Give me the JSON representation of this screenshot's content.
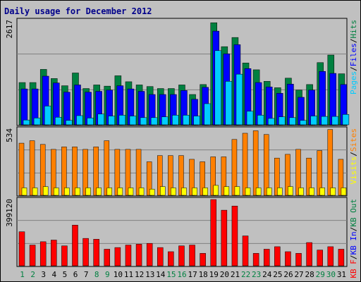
{
  "chart_data": {
    "title": "Daily usage for December 2012",
    "categories": [
      "1",
      "2",
      "3",
      "4",
      "5",
      "6",
      "7",
      "8",
      "9",
      "10",
      "11",
      "12",
      "13",
      "14",
      "15",
      "16",
      "17",
      "18",
      "19",
      "20",
      "21",
      "22",
      "23",
      "24",
      "25",
      "26",
      "27",
      "28",
      "29",
      "30",
      "31"
    ],
    "weekend_days": [
      "1",
      "2",
      "8",
      "9",
      "15",
      "16",
      "22",
      "23",
      "29",
      "30"
    ],
    "panels": [
      {
        "type": "bar",
        "max_label": "2617",
        "ymax": 2617,
        "legend": [
          {
            "name": "Pages",
            "color": "#00ccff"
          },
          {
            "name": "Files",
            "color": "#0000ff"
          },
          {
            "name": "Hits",
            "color": "#008040"
          }
        ],
        "series": [
          {
            "name": "Hits",
            "color": "#008040",
            "values": [
              1060,
              1060,
              1390,
              1160,
              980,
              1300,
              910,
              1000,
              970,
              1230,
              1080,
              1000,
              960,
              910,
              910,
              1000,
              760,
              1010,
              2560,
              1960,
              2190,
              1550,
              1380,
              1090,
              930,
              1170,
              870,
              1010,
              1560,
              1750,
              1280
            ]
          },
          {
            "name": "Files",
            "color": "#0000ff",
            "values": [
              900,
              900,
              1220,
              1050,
              820,
              1000,
              820,
              840,
              870,
              980,
              900,
              840,
              760,
              760,
              760,
              860,
              640,
              940,
              2350,
              1780,
              2010,
              1410,
              1060,
              950,
              790,
              1020,
              690,
              870,
              1340,
              1290,
              1010
            ]
          },
          {
            "name": "Pages",
            "color": "#00ccff",
            "values": [
              120,
              170,
              470,
              190,
              110,
              230,
              170,
              270,
              220,
              240,
              220,
              180,
              180,
              200,
              240,
              240,
              220,
              530,
              1860,
              1090,
              1270,
              340,
              240,
              160,
              200,
              180,
              110,
              220,
              210,
              210,
              260
            ]
          }
        ]
      },
      {
        "type": "bar",
        "max_label": "534",
        "ymax": 534,
        "legend": [
          {
            "name": "Visits",
            "color": "#ffff00"
          },
          {
            "name": "Sites",
            "color": "#ff8000"
          }
        ],
        "series": [
          {
            "name": "Sites",
            "color": "#ff8000",
            "values": [
              420,
              440,
              410,
              370,
              390,
              390,
              370,
              390,
              440,
              370,
              370,
              370,
              270,
              320,
              320,
              320,
              290,
              270,
              310,
              310,
              450,
              500,
              520,
              490,
              300,
              330,
              370,
              300,
              360,
              530,
              290
            ]
          },
          {
            "name": "Visits",
            "color": "#ffff00",
            "values": [
              60,
              60,
              70,
              60,
              60,
              60,
              60,
              60,
              60,
              60,
              60,
              60,
              50,
              70,
              60,
              60,
              60,
              60,
              80,
              70,
              70,
              60,
              60,
              60,
              60,
              70,
              60,
              60,
              60,
              60,
              60
            ]
          }
        ]
      },
      {
        "type": "bar",
        "max_label": "399120",
        "ymax": 399120,
        "legend": [
          {
            "name": "KB F",
            "color": "#ff0000"
          },
          {
            "name": "KB In",
            "color": "#0000ff"
          },
          {
            "name": "KB Out",
            "color": "#008040"
          }
        ],
        "series": [
          {
            "name": "KB F",
            "color": "#ff0000",
            "values": [
              205000,
              125000,
              145000,
              155000,
              120000,
              245000,
              165000,
              160000,
              100000,
              110000,
              125000,
              130000,
              135000,
              110000,
              85000,
              120000,
              125000,
              75000,
              399000,
              335000,
              360000,
              180000,
              75000,
              100000,
              115000,
              85000,
              75000,
              140000,
              95000,
              115000,
              100000
            ]
          }
        ]
      }
    ]
  }
}
